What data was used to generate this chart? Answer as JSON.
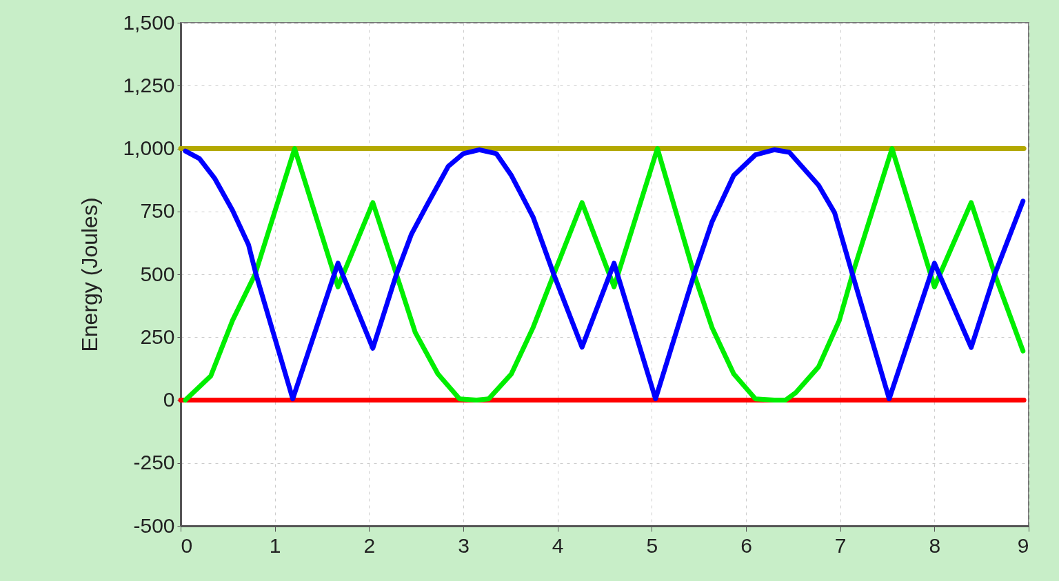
{
  "chart_data": {
    "type": "line",
    "ylabel": "Energy (Joules)",
    "xlim": [
      0,
      9
    ],
    "ylim": [
      -500,
      1500
    ],
    "xticks": [
      0,
      1,
      2,
      3,
      4,
      5,
      6,
      7,
      8,
      9
    ],
    "yticks": [
      -500,
      -250,
      0,
      250,
      500,
      750,
      {
        "value": 1000,
        "label": "1,000"
      },
      {
        "value": 1250,
        "label": "1,250"
      },
      {
        "value": 1500,
        "label": "1,500"
      }
    ],
    "grid": true,
    "line_style": "solid",
    "series": [
      {
        "color": "#b3a800",
        "x": [
          0,
          8.95
        ],
        "values": [
          1000,
          1000
        ]
      },
      {
        "color": "#ff0000",
        "x": [
          0,
          8.95
        ],
        "values": [
          0,
          0
        ]
      },
      {
        "color": "#00ee00",
        "x": [
          0.05,
          0.32,
          0.55,
          0.79,
          1.21,
          1.67,
          2.04,
          2.29,
          2.49,
          2.73,
          2.96,
          3.14,
          3.27,
          3.51,
          3.74,
          3.96,
          4.26,
          4.6,
          5.06,
          5.45,
          5.64,
          5.87,
          6.1,
          6.3,
          6.42,
          6.53,
          6.77,
          6.99,
          7.13,
          7.55,
          8.0,
          8.39,
          8.64,
          8.94
        ],
        "values": [
          0,
          96,
          316,
          500,
          1000,
          450,
          785,
          500,
          269,
          104,
          5,
          0,
          5,
          104,
          288,
          500,
          785,
          450,
          1000,
          500,
          288,
          104,
          5,
          0,
          0,
          30,
          132,
          316,
          500,
          1000,
          450,
          785,
          500,
          195
        ]
      },
      {
        "color": "#0000ff",
        "x": [
          0.05,
          0.2,
          0.36,
          0.55,
          0.72,
          0.8,
          1.19,
          1.67,
          2.04,
          2.29,
          2.45,
          2.61,
          2.84,
          3.0,
          3.17,
          3.35,
          3.51,
          3.74,
          3.96,
          4.26,
          4.6,
          5.04,
          5.45,
          5.64,
          5.87,
          6.1,
          6.3,
          6.46,
          6.77,
          6.94,
          7.13,
          7.52,
          8.0,
          8.39,
          8.64,
          8.94
        ],
        "values": [
          990,
          960,
          882,
          755,
          618,
          500,
          5,
          544,
          206,
          500,
          660,
          772,
          929,
          980,
          995,
          980,
          893,
          728,
          500,
          210,
          544,
          5,
          500,
          709,
          893,
          975,
          995,
          985,
          854,
          745,
          500,
          5,
          544,
          209,
          500,
          791
        ]
      }
    ]
  }
}
